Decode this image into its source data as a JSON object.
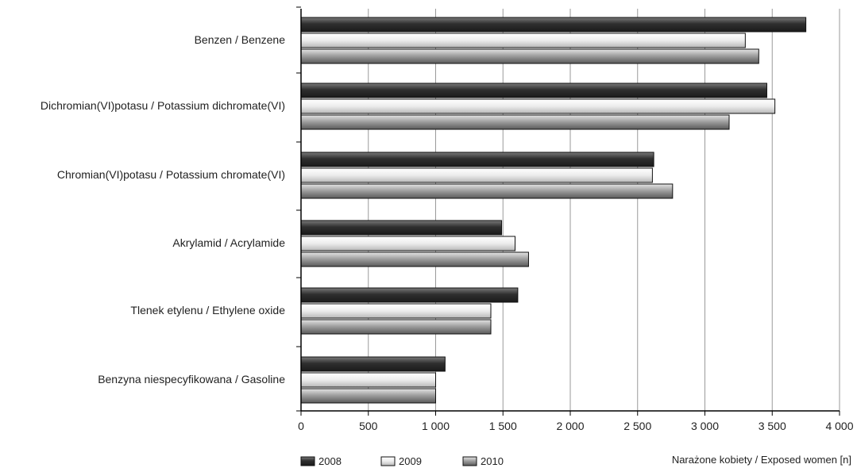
{
  "chart_data": {
    "type": "bar",
    "orientation": "horizontal",
    "categories": [
      "Benzen / Benzene",
      "Dichromian(VI)potasu / Potassium dichromate(VI)",
      "Chromian(VI)potasu / Potassium chromate(VI)",
      "Akrylamid / Acrylamide",
      "Tlenek etylenu / Ethylene oxide",
      "Benzyna niespecyfikowana / Gasoline"
    ],
    "series": [
      {
        "name": "2008",
        "values": [
          3750,
          3460,
          2620,
          1490,
          1610,
          1070
        ],
        "color": "#3a3a3a"
      },
      {
        "name": "2009",
        "values": [
          3300,
          3520,
          2610,
          1590,
          1410,
          1000
        ],
        "color": "#e8e8e8"
      },
      {
        "name": "2010",
        "values": [
          3400,
          3180,
          2760,
          1690,
          1410,
          1000
        ],
        "color": "#9a9a9a"
      }
    ],
    "xlim": [
      0,
      4000
    ],
    "xticks": [
      0,
      500,
      1000,
      1500,
      2000,
      2500,
      3000,
      3500,
      4000
    ],
    "xtick_labels": [
      "0",
      "500",
      "1 000",
      "1 500",
      "2 000",
      "2 500",
      "3 000",
      "3 500",
      "4 000"
    ],
    "xlabel": "Narażone kobiety / Exposed women [n]",
    "grid": true,
    "legend_position": "bottom-left"
  }
}
